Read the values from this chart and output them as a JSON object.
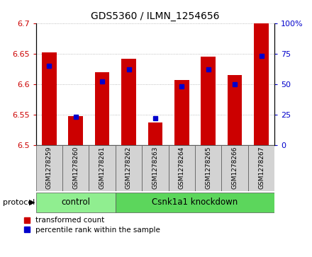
{
  "title": "GDS5360 / ILMN_1254656",
  "samples": [
    "GSM1278259",
    "GSM1278260",
    "GSM1278261",
    "GSM1278262",
    "GSM1278263",
    "GSM1278264",
    "GSM1278265",
    "GSM1278266",
    "GSM1278267"
  ],
  "red_values": [
    6.652,
    6.548,
    6.62,
    6.642,
    6.537,
    6.607,
    6.645,
    6.615,
    6.7
  ],
  "blue_percentiles": [
    65,
    23,
    52,
    62,
    22,
    48,
    62,
    50,
    73
  ],
  "ylim": [
    6.5,
    6.7
  ],
  "yticks_left": [
    6.5,
    6.55,
    6.6,
    6.65,
    6.7
  ],
  "yticks_right": [
    0,
    25,
    50,
    75,
    100
  ],
  "left_color": "#cc0000",
  "right_color": "#0000cc",
  "bar_color": "#cc0000",
  "marker_color": "#0000cc",
  "control_label": "control",
  "knockdown_label": "Csnk1a1 knockdown",
  "protocol_label": "protocol",
  "legend_red": "transformed count",
  "legend_blue": "percentile rank within the sample",
  "control_color": "#90ee90",
  "knockdown_color": "#5cd65c",
  "grid_color": "#aaaaaa",
  "bar_width": 0.55,
  "n_control": 3,
  "n_knockdown": 6
}
